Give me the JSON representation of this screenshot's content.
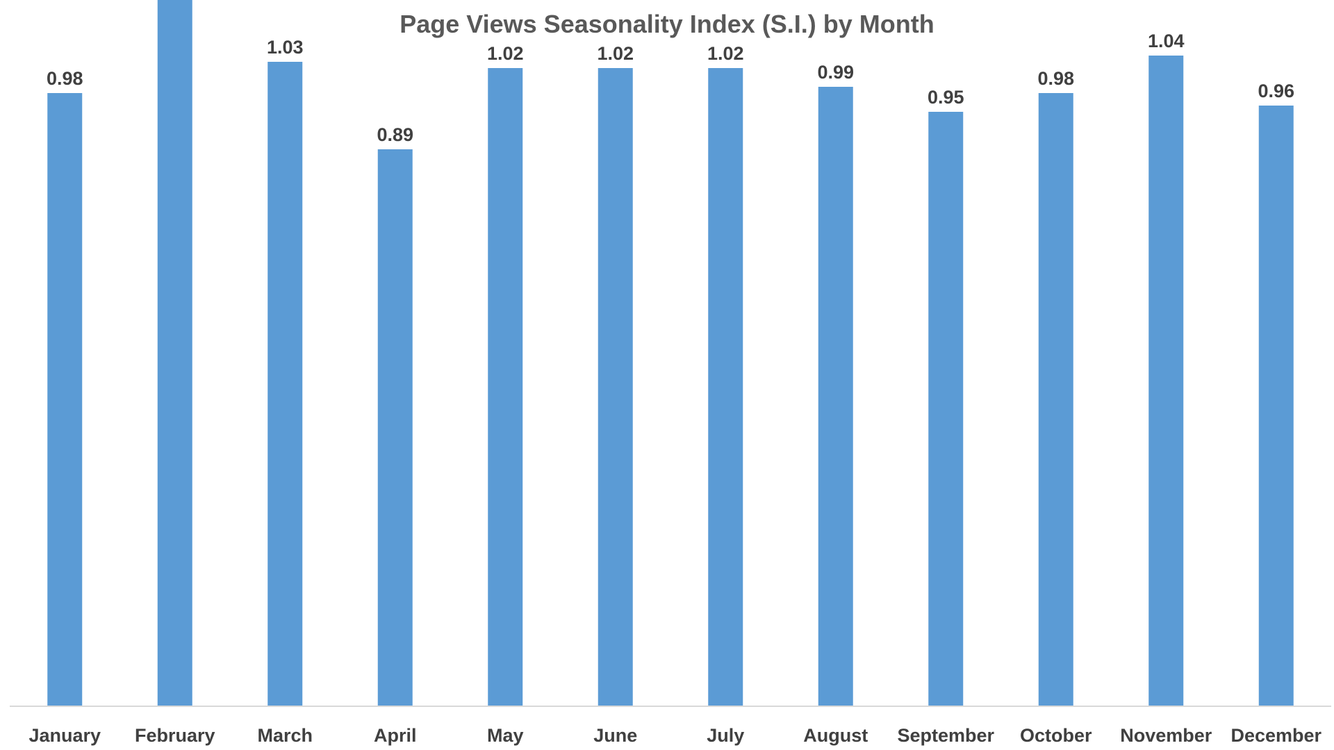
{
  "chart_data": {
    "type": "bar",
    "title": "Page Views Seasonality Index (S.I.) by Month",
    "xlabel": "",
    "ylabel": "",
    "categories": [
      "January",
      "February",
      "March",
      "April",
      "May",
      "June",
      "July",
      "August",
      "September",
      "October",
      "November",
      "December"
    ],
    "values": [
      0.98,
      1.14,
      1.03,
      0.89,
      1.02,
      1.02,
      1.02,
      0.99,
      0.95,
      0.98,
      1.04,
      0.96
    ],
    "ylim": [
      0,
      1.2
    ],
    "grid": false,
    "legend": "none",
    "bar_color": "#5b9bd5",
    "show_data_labels": true
  }
}
